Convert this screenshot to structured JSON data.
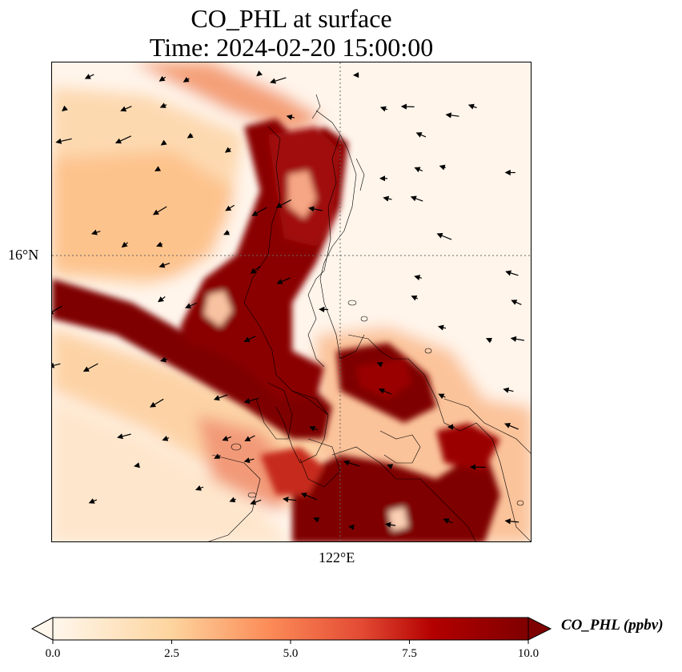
{
  "title": {
    "line1": "CO_PHL at surface",
    "line2": "Time: 2024-02-20 15:00:00"
  },
  "axes": {
    "lat_tick": "16°N",
    "lon_tick": "122°E"
  },
  "colorbar": {
    "label": "CO_PHL (ppbv)",
    "ticks": [
      "0.0",
      "2.5",
      "5.0",
      "7.5",
      "10.0"
    ],
    "vmin": 0,
    "vmax": 10,
    "cmap": "OrRd",
    "extend": "both"
  },
  "colors": {
    "low": "#fff5eb",
    "mid": "#fdae6b",
    "high": "#7f0000"
  }
}
